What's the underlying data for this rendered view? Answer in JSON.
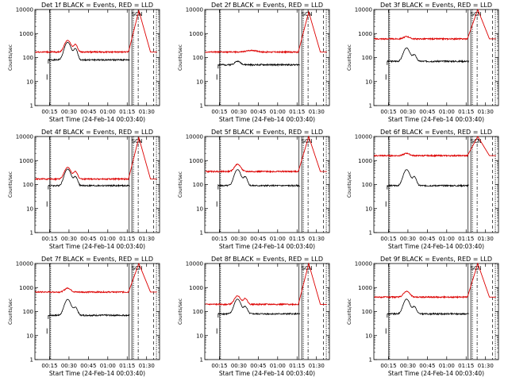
{
  "figure": {
    "ylabel": "Counts/sec",
    "xlabel": "Start Time (24-Feb-14 00:03:40)"
  },
  "colors": {
    "events": "#000000",
    "lld": "#dd0000"
  },
  "axis": {
    "ytick_labels": [
      "1",
      "10",
      "100",
      "1000",
      "10000"
    ],
    "yticks": [
      1,
      10,
      100,
      1000,
      10000
    ],
    "ylim": [
      1,
      10000
    ],
    "yscale": "log",
    "xtick_labels": [
      "00:15",
      "00:30",
      "00:45",
      "01:00",
      "01:15",
      "01:30"
    ],
    "xticks_min": [
      15,
      30,
      45,
      60,
      75,
      90
    ],
    "xlim_min": [
      3.67,
      100
    ]
  },
  "marker_labels": [
    "SC",
    "N"
  ],
  "chart_data": [
    {
      "type": "line",
      "title": "Det 1f BLACK = Events, RED = LLD",
      "series": [
        {
          "name": "Events",
          "base": 80,
          "peaks": [
            [
              25,
              6
            ],
            [
              29,
              350,
              3
            ],
            [
              35,
              150,
              2
            ]
          ]
        },
        {
          "name": "LLD",
          "base": 170,
          "peaks": [
            [
              29,
              350,
              3
            ],
            [
              35,
              180,
              2
            ]
          ],
          "flare_peak": 9000
        }
      ]
    },
    {
      "type": "line",
      "title": "Det 2f BLACK = Events, RED = LLD",
      "series": [
        {
          "name": "Events",
          "base": 50,
          "peaks": [
            [
              29,
              20,
              3
            ]
          ]
        },
        {
          "name": "LLD",
          "base": 170,
          "peaks": [
            [
              40,
              30,
              5
            ]
          ],
          "flare_peak": 8000
        }
      ]
    },
    {
      "type": "line",
      "title": "Det 3f BLACK = Events, RED = LLD",
      "series": [
        {
          "name": "Events",
          "base": 70,
          "peaks": [
            [
              29,
              180,
              3
            ],
            [
              35,
              60,
              2
            ]
          ]
        },
        {
          "name": "LLD",
          "base": 600,
          "peaks": [
            [
              29,
              150,
              3
            ]
          ],
          "flare_peak": 10000
        }
      ]
    },
    {
      "type": "line",
      "title": "Det 4f BLACK = Events, RED = LLD",
      "series": [
        {
          "name": "Events",
          "base": 90,
          "peaks": [
            [
              29,
              350,
              3
            ],
            [
              35,
              120,
              2
            ]
          ]
        },
        {
          "name": "LLD",
          "base": 170,
          "peaks": [
            [
              29,
              350,
              3
            ],
            [
              35,
              180,
              2
            ]
          ],
          "flare_peak": 9000
        }
      ]
    },
    {
      "type": "line",
      "title": "Det 5f BLACK = Events, RED = LLD",
      "series": [
        {
          "name": "Events",
          "base": 90,
          "peaks": [
            [
              29,
              330,
              3
            ],
            [
              35,
              120,
              2
            ]
          ]
        },
        {
          "name": "LLD",
          "base": 350,
          "peaks": [
            [
              29,
              350,
              3
            ]
          ],
          "flare_peak": 10000
        }
      ]
    },
    {
      "type": "line",
      "title": "Det 6f BLACK = Events, RED = LLD",
      "series": [
        {
          "name": "Events",
          "base": 90,
          "peaks": [
            [
              29,
              330,
              3
            ],
            [
              35,
              120,
              2
            ]
          ]
        },
        {
          "name": "LLD",
          "base": 1600,
          "peaks": [
            [
              29,
              400,
              3
            ]
          ],
          "flare_peak": 10000
        }
      ]
    },
    {
      "type": "line",
      "title": "Det 7f BLACK = Events, RED = LLD",
      "series": [
        {
          "name": "Events",
          "base": 70,
          "peaks": [
            [
              29,
              250,
              3
            ],
            [
              35,
              80,
              2
            ]
          ]
        },
        {
          "name": "LLD",
          "base": 650,
          "peaks": [
            [
              29,
              300,
              3
            ]
          ],
          "flare_peak": 10000
        }
      ]
    },
    {
      "type": "line",
      "title": "Det 8f BLACK = Events, RED = LLD",
      "series": [
        {
          "name": "Events",
          "base": 80,
          "peaks": [
            [
              29,
              250,
              3
            ],
            [
              35,
              80,
              2
            ]
          ]
        },
        {
          "name": "LLD",
          "base": 200,
          "peaks": [
            [
              29,
              250,
              3
            ],
            [
              35,
              150,
              2
            ]
          ],
          "flare_peak": 10000
        }
      ]
    },
    {
      "type": "line",
      "title": "Det 9f BLACK = Events, RED = LLD",
      "series": [
        {
          "name": "Events",
          "base": 80,
          "peaks": [
            [
              29,
              250,
              3
            ],
            [
              35,
              80,
              2
            ]
          ]
        },
        {
          "name": "LLD",
          "base": 400,
          "peaks": [
            [
              29,
              300,
              3
            ]
          ],
          "flare_peak": 10000
        }
      ]
    }
  ]
}
